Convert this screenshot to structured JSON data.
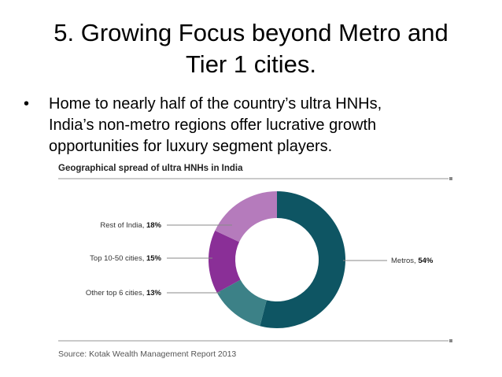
{
  "slide": {
    "title_line1": "5. Growing Focus beyond Metro and",
    "title_line2": "Tier 1 cities.",
    "bullet_char": "•",
    "bullet_line1": "Home to nearly half of the country’s ultra HNHs,",
    "bullet_line2": "India’s non-metro regions offer lucrative growth",
    "bullet_line3": "opportunities for luxury segment players."
  },
  "chart_data": {
    "type": "pie",
    "title": "Geographical spread of ultra HNHs in India",
    "source": "Source: Kotak Wealth Management Report 2013",
    "slices": [
      {
        "label": "Metros",
        "value": 54,
        "value_text": "54%",
        "color": "#0e5563"
      },
      {
        "label": "Other top 6 cities",
        "value": 13,
        "value_text": "13%",
        "color": "#3c8187"
      },
      {
        "label": "Top 10-50 cities",
        "value": 15,
        "value_text": "15%",
        "color": "#8a2f97"
      },
      {
        "label": "Rest of India",
        "value": 18,
        "value_text": "18%",
        "color": "#b57bbc"
      }
    ],
    "colors": {
      "rule": "#aaaaaa",
      "leader": "#888888"
    }
  }
}
